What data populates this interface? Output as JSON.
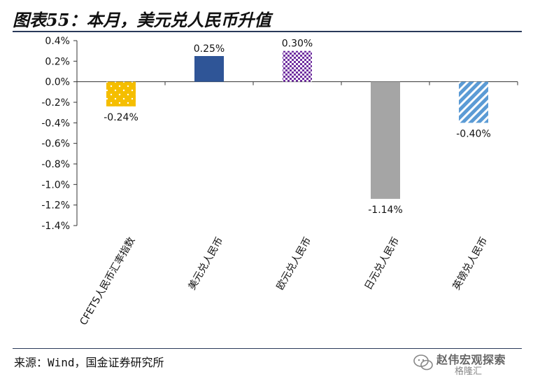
{
  "header": {
    "title": "图表55：本月，美元兑人民币升值"
  },
  "footer": {
    "source": "来源：Wind，国金证券研究所"
  },
  "watermark": {
    "name": "赵伟宏观探索",
    "sub": "格隆汇"
  },
  "colors": {
    "axis": "#333333",
    "rule": "#2a3a5a"
  },
  "chart_data": {
    "type": "bar",
    "title": "",
    "xlabel": "",
    "ylabel": "",
    "ylim": [
      -1.4,
      0.4
    ],
    "yticks": [
      0.4,
      0.2,
      0.0,
      -0.2,
      -0.4,
      -0.6,
      -0.8,
      -1.0,
      -1.2,
      -1.4
    ],
    "ytick_labels": [
      "0.4%",
      "0.2%",
      "0.0%",
      "-0.2%",
      "-0.4%",
      "-0.6%",
      "-0.8%",
      "-1.0%",
      "-1.2%",
      "-1.4%"
    ],
    "grid": false,
    "categories": [
      "CFETS人民币汇率指数",
      "美元兑人民币",
      "欧元兑人民币",
      "日元兑人民币",
      "英镑兑人民币"
    ],
    "values": [
      -0.24,
      0.25,
      0.3,
      -1.14,
      -0.4
    ],
    "data_labels": [
      "-0.24%",
      "0.25%",
      "0.30%",
      "-1.14%",
      "-0.40%"
    ],
    "bar_styles": [
      {
        "fill": "#f5be00",
        "pattern": "dots",
        "pattern_color": "#ffffff"
      },
      {
        "fill": "#2f5597",
        "pattern": "solid",
        "pattern_color": "#2f5597"
      },
      {
        "fill": "#7030a0",
        "pattern": "checker",
        "pattern_color": "#ffffff"
      },
      {
        "fill": "#a5a5a5",
        "pattern": "solid",
        "pattern_color": "#a5a5a5"
      },
      {
        "fill": "#5b9bd5",
        "pattern": "diagonal",
        "pattern_color": "#ffffff"
      }
    ]
  }
}
